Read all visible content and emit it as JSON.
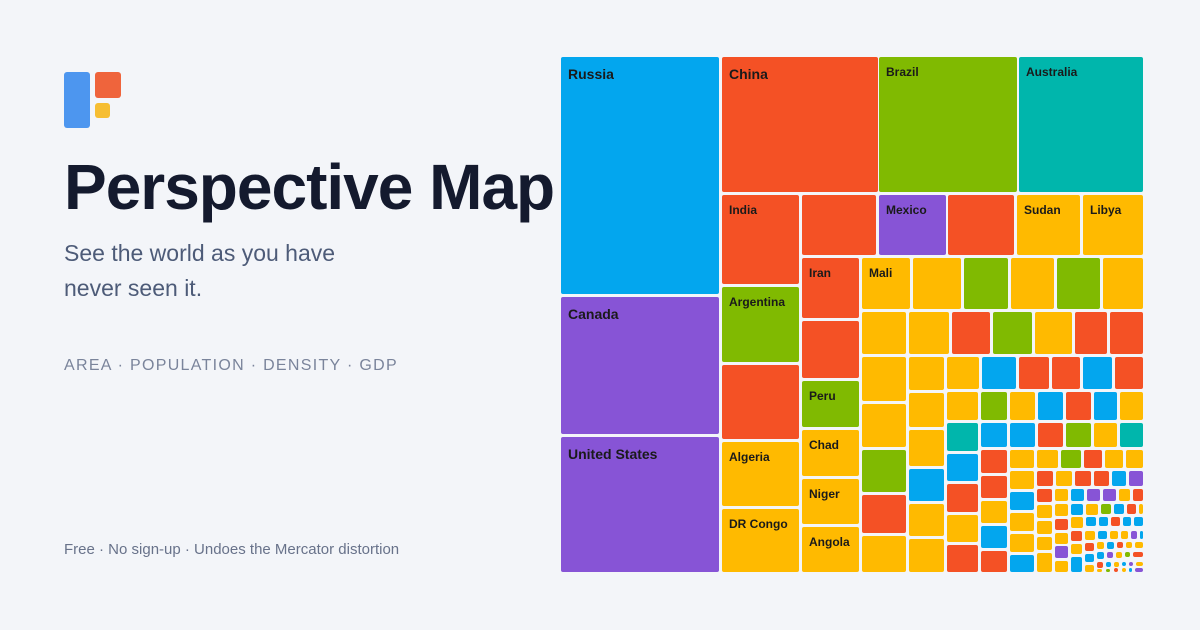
{
  "brand": {
    "logo": "perspective-map-logo"
  },
  "hero": {
    "title": "Perspective Map",
    "tagline": "See the world as you have never seen it.",
    "metrics": "AREA · POPULATION · DENSITY · GDP",
    "footer": "Free · No sign-up · Undoes the Mercator distortion"
  },
  "colors": {
    "blue": "#03a6ee",
    "red": "#f45125",
    "green": "#80ba01",
    "teal": "#00b6ac",
    "purple": "#8754d6",
    "yellow": "#ffba00",
    "logo_blue": "#4d96ef",
    "logo_red": "#ef643c",
    "logo_yellow": "#f6be33"
  },
  "treemap": {
    "labels": {
      "russia": "Russia",
      "china": "China",
      "brazil": "Brazil",
      "australia": "Australia",
      "canada": "Canada",
      "united_states": "United States",
      "india": "India",
      "mexico": "Mexico",
      "sudan": "Sudan",
      "libya": "Libya",
      "iran": "Iran",
      "mali": "Mali",
      "argentina": "Argentina",
      "peru": "Peru",
      "chad": "Chad",
      "niger": "Niger",
      "angola": "Angola",
      "algeria": "Algeria",
      "dr_congo": "DR Congo"
    }
  }
}
